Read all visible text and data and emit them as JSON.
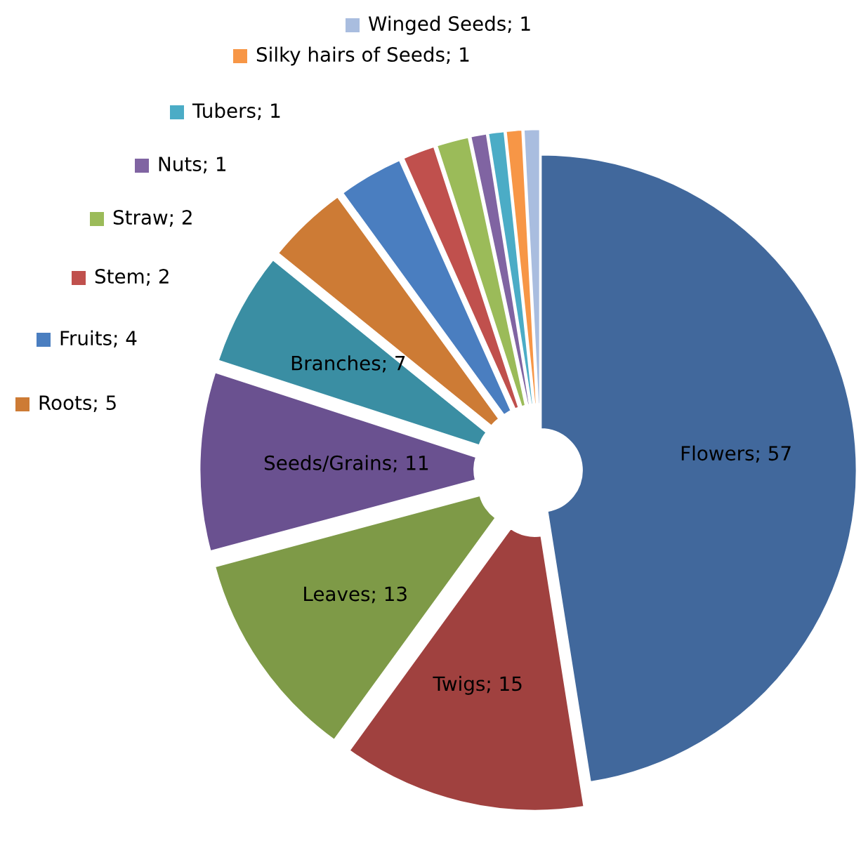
{
  "chart_data": {
    "type": "donut",
    "categories": [
      "Flowers",
      "Twigs",
      "Leaves",
      "Seeds/Grains",
      "Branches",
      "Roots",
      "Fruits",
      "Stem",
      "Straw",
      "Nuts",
      "Tubers",
      "Silky hairs of Seeds",
      "Winged Seeds"
    ],
    "values": [
      57,
      15,
      13,
      11,
      7,
      5,
      4,
      2,
      2,
      1,
      1,
      1,
      1
    ],
    "colors": [
      "#41689c",
      "#a0413f",
      "#7e9a47",
      "#6a5190",
      "#3a8ea3",
      "#cd7b35",
      "#4a7ec0",
      "#c0504d",
      "#9bbb59",
      "#8064a2",
      "#4bacc6",
      "#f79646",
      "#a9bddf"
    ],
    "value_labels": [
      "; 57",
      "; 15",
      "; 13",
      "; 11",
      "; 7",
      "; 5",
      "; 4",
      "; 2",
      "; 2",
      "; 1",
      "; 1",
      "; 1",
      "; 1"
    ],
    "legend": "top left"
  }
}
